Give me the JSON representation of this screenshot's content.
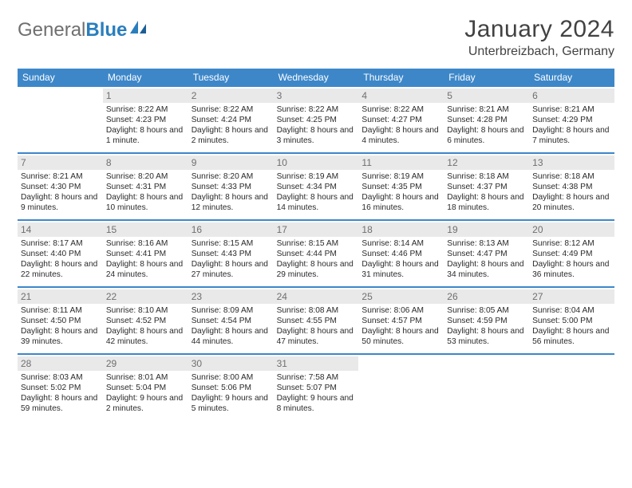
{
  "brand": {
    "part1": "General",
    "part2": "Blue"
  },
  "title": "January 2024",
  "location": "Unterbreizbach, Germany",
  "colors": {
    "header_bar": "#3d87c9",
    "day_num_bg": "#e9e9e9",
    "text_dark": "#2a2a2a",
    "text_muted": "#6f6f6f",
    "brand_gray": "#6f6f6f",
    "brand_blue": "#2a7ebd",
    "background": "#ffffff"
  },
  "typography": {
    "month_title_size": 30,
    "location_size": 16,
    "weekday_size": 12,
    "daynum_size": 12,
    "detail_size": 10.2
  },
  "weekdays": [
    "Sunday",
    "Monday",
    "Tuesday",
    "Wednesday",
    "Thursday",
    "Friday",
    "Saturday"
  ],
  "weeks": [
    [
      {
        "empty": true
      },
      {
        "num": "1",
        "sunrise": "Sunrise: 8:22 AM",
        "sunset": "Sunset: 4:23 PM",
        "daylight": "Daylight: 8 hours and 1 minute."
      },
      {
        "num": "2",
        "sunrise": "Sunrise: 8:22 AM",
        "sunset": "Sunset: 4:24 PM",
        "daylight": "Daylight: 8 hours and 2 minutes."
      },
      {
        "num": "3",
        "sunrise": "Sunrise: 8:22 AM",
        "sunset": "Sunset: 4:25 PM",
        "daylight": "Daylight: 8 hours and 3 minutes."
      },
      {
        "num": "4",
        "sunrise": "Sunrise: 8:22 AM",
        "sunset": "Sunset: 4:27 PM",
        "daylight": "Daylight: 8 hours and 4 minutes."
      },
      {
        "num": "5",
        "sunrise": "Sunrise: 8:21 AM",
        "sunset": "Sunset: 4:28 PM",
        "daylight": "Daylight: 8 hours and 6 minutes."
      },
      {
        "num": "6",
        "sunrise": "Sunrise: 8:21 AM",
        "sunset": "Sunset: 4:29 PM",
        "daylight": "Daylight: 8 hours and 7 minutes."
      }
    ],
    [
      {
        "num": "7",
        "sunrise": "Sunrise: 8:21 AM",
        "sunset": "Sunset: 4:30 PM",
        "daylight": "Daylight: 8 hours and 9 minutes."
      },
      {
        "num": "8",
        "sunrise": "Sunrise: 8:20 AM",
        "sunset": "Sunset: 4:31 PM",
        "daylight": "Daylight: 8 hours and 10 minutes."
      },
      {
        "num": "9",
        "sunrise": "Sunrise: 8:20 AM",
        "sunset": "Sunset: 4:33 PM",
        "daylight": "Daylight: 8 hours and 12 minutes."
      },
      {
        "num": "10",
        "sunrise": "Sunrise: 8:19 AM",
        "sunset": "Sunset: 4:34 PM",
        "daylight": "Daylight: 8 hours and 14 minutes."
      },
      {
        "num": "11",
        "sunrise": "Sunrise: 8:19 AM",
        "sunset": "Sunset: 4:35 PM",
        "daylight": "Daylight: 8 hours and 16 minutes."
      },
      {
        "num": "12",
        "sunrise": "Sunrise: 8:18 AM",
        "sunset": "Sunset: 4:37 PM",
        "daylight": "Daylight: 8 hours and 18 minutes."
      },
      {
        "num": "13",
        "sunrise": "Sunrise: 8:18 AM",
        "sunset": "Sunset: 4:38 PM",
        "daylight": "Daylight: 8 hours and 20 minutes."
      }
    ],
    [
      {
        "num": "14",
        "sunrise": "Sunrise: 8:17 AM",
        "sunset": "Sunset: 4:40 PM",
        "daylight": "Daylight: 8 hours and 22 minutes."
      },
      {
        "num": "15",
        "sunrise": "Sunrise: 8:16 AM",
        "sunset": "Sunset: 4:41 PM",
        "daylight": "Daylight: 8 hours and 24 minutes."
      },
      {
        "num": "16",
        "sunrise": "Sunrise: 8:15 AM",
        "sunset": "Sunset: 4:43 PM",
        "daylight": "Daylight: 8 hours and 27 minutes."
      },
      {
        "num": "17",
        "sunrise": "Sunrise: 8:15 AM",
        "sunset": "Sunset: 4:44 PM",
        "daylight": "Daylight: 8 hours and 29 minutes."
      },
      {
        "num": "18",
        "sunrise": "Sunrise: 8:14 AM",
        "sunset": "Sunset: 4:46 PM",
        "daylight": "Daylight: 8 hours and 31 minutes."
      },
      {
        "num": "19",
        "sunrise": "Sunrise: 8:13 AM",
        "sunset": "Sunset: 4:47 PM",
        "daylight": "Daylight: 8 hours and 34 minutes."
      },
      {
        "num": "20",
        "sunrise": "Sunrise: 8:12 AM",
        "sunset": "Sunset: 4:49 PM",
        "daylight": "Daylight: 8 hours and 36 minutes."
      }
    ],
    [
      {
        "num": "21",
        "sunrise": "Sunrise: 8:11 AM",
        "sunset": "Sunset: 4:50 PM",
        "daylight": "Daylight: 8 hours and 39 minutes."
      },
      {
        "num": "22",
        "sunrise": "Sunrise: 8:10 AM",
        "sunset": "Sunset: 4:52 PM",
        "daylight": "Daylight: 8 hours and 42 minutes."
      },
      {
        "num": "23",
        "sunrise": "Sunrise: 8:09 AM",
        "sunset": "Sunset: 4:54 PM",
        "daylight": "Daylight: 8 hours and 44 minutes."
      },
      {
        "num": "24",
        "sunrise": "Sunrise: 8:08 AM",
        "sunset": "Sunset: 4:55 PM",
        "daylight": "Daylight: 8 hours and 47 minutes."
      },
      {
        "num": "25",
        "sunrise": "Sunrise: 8:06 AM",
        "sunset": "Sunset: 4:57 PM",
        "daylight": "Daylight: 8 hours and 50 minutes."
      },
      {
        "num": "26",
        "sunrise": "Sunrise: 8:05 AM",
        "sunset": "Sunset: 4:59 PM",
        "daylight": "Daylight: 8 hours and 53 minutes."
      },
      {
        "num": "27",
        "sunrise": "Sunrise: 8:04 AM",
        "sunset": "Sunset: 5:00 PM",
        "daylight": "Daylight: 8 hours and 56 minutes."
      }
    ],
    [
      {
        "num": "28",
        "sunrise": "Sunrise: 8:03 AM",
        "sunset": "Sunset: 5:02 PM",
        "daylight": "Daylight: 8 hours and 59 minutes."
      },
      {
        "num": "29",
        "sunrise": "Sunrise: 8:01 AM",
        "sunset": "Sunset: 5:04 PM",
        "daylight": "Daylight: 9 hours and 2 minutes."
      },
      {
        "num": "30",
        "sunrise": "Sunrise: 8:00 AM",
        "sunset": "Sunset: 5:06 PM",
        "daylight": "Daylight: 9 hours and 5 minutes."
      },
      {
        "num": "31",
        "sunrise": "Sunrise: 7:58 AM",
        "sunset": "Sunset: 5:07 PM",
        "daylight": "Daylight: 9 hours and 8 minutes."
      },
      {
        "empty": true
      },
      {
        "empty": true
      },
      {
        "empty": true
      }
    ]
  ]
}
